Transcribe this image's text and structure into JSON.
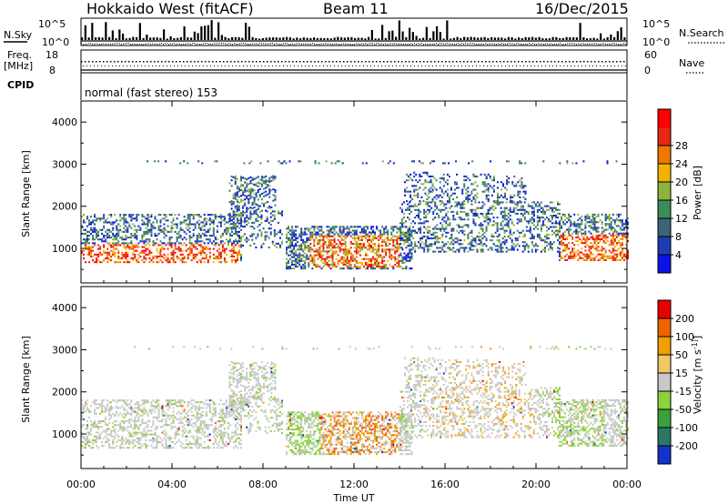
{
  "header": {
    "station": "Hokkaido West (fitACF)",
    "beam": "Beam 11",
    "date": "16/Dec/2015"
  },
  "info_panel": {
    "nsky_label": "N.Sky",
    "nsky_ticks": [
      "10^5",
      "10^0"
    ],
    "nsearch_label": "N.Search",
    "nsearch_ticks": [
      "10^5",
      "10^0"
    ],
    "freq_label": "Freq.",
    "freq_unit": "[MHz]",
    "freq_ticks": [
      "18",
      "8"
    ],
    "nave_label": "Nave",
    "nave_ticks": [
      "60",
      "0"
    ],
    "cpid_label": "CPID",
    "cpid_text": "normal (fast stereo) 153"
  },
  "chart_data": [
    {
      "type": "heatmap",
      "name": "power",
      "ylabel": "Slant Range [km]",
      "ylim": [
        180,
        4500
      ],
      "yticks": [
        1000,
        2000,
        3000,
        4000
      ],
      "xlim_hours": [
        0,
        24
      ],
      "colorbar": {
        "label": "Power [dB]",
        "ticks": [
          4,
          8,
          12,
          16,
          20,
          24,
          28
        ],
        "colors": [
          "#0a14e6",
          "#1e3cb4",
          "#3c6478",
          "#3c8c5a",
          "#8cb43c",
          "#f0b400",
          "#f07800",
          "#e62814",
          "#ff0000"
        ]
      }
    },
    {
      "type": "heatmap",
      "name": "velocity",
      "ylabel": "Slant Range [km]",
      "ylim": [
        180,
        4500
      ],
      "yticks": [
        1000,
        2000,
        3000,
        4000
      ],
      "xlim_hours": [
        0,
        24
      ],
      "colorbar": {
        "label": "Velocity [m s^-1]",
        "tick_labels": [
          "200",
          "100",
          "50",
          "15",
          "-15",
          "-50",
          "-100",
          "-200"
        ],
        "colors": [
          "#1432c8",
          "#287864",
          "#3ca03c",
          "#8cd23c",
          "#c8c8c8",
          "#f0c864",
          "#f0a000",
          "#f06400",
          "#e60000"
        ]
      }
    }
  ],
  "xaxis": {
    "label": "Time UT",
    "ticks": [
      "00:00",
      "04:00",
      "08:00",
      "12:00",
      "16:00",
      "20:00",
      "00:00"
    ]
  }
}
